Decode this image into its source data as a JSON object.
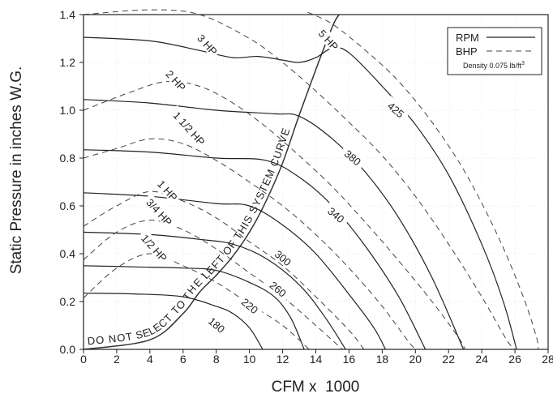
{
  "chart_data": {
    "type": "line",
    "xlabel": "CFM x  1000",
    "ylabel": "Static Pressure in inches W.G.",
    "xlim": [
      0,
      28
    ],
    "ylim": [
      0,
      1.4
    ],
    "x_ticks": [
      "0",
      "2",
      "4",
      "6",
      "8",
      "10",
      "12",
      "14",
      "16",
      "18",
      "20",
      "22",
      "24",
      "26",
      "28"
    ],
    "y_ticks": [
      "0.0",
      "0.2",
      "0.4",
      "0.6",
      "0.8",
      "1.0",
      "1.2",
      "1.4"
    ],
    "grid": true,
    "legend": {
      "position": "top-right",
      "entries": [
        {
          "label": "RPM",
          "style": "solid"
        },
        {
          "label": "BHP",
          "style": "dashed"
        }
      ],
      "note": "Density 0.075 lb/ft",
      "note_sup": "3"
    },
    "system_curve": {
      "label": "DO NOT SELECT TO THE LEFT OF THIS SYSTEM CURVE",
      "points": [
        [
          0,
          0
        ],
        [
          4,
          0.04
        ],
        [
          6,
          0.15
        ],
        [
          7,
          0.24
        ],
        [
          8,
          0.31
        ],
        [
          9,
          0.39
        ],
        [
          10,
          0.49
        ],
        [
          11,
          0.62
        ],
        [
          12,
          0.78
        ],
        [
          13,
          0.98
        ],
        [
          14,
          1.17
        ],
        [
          15,
          1.35
        ],
        [
          15.4,
          1.4
        ]
      ]
    },
    "rpm_series": [
      {
        "name": "180",
        "points": [
          [
            0,
            0.235
          ],
          [
            3,
            0.232
          ],
          [
            6,
            0.22
          ],
          [
            8,
            0.18
          ],
          [
            9,
            0.15
          ],
          [
            10,
            0.09
          ],
          [
            10.8,
            0.0
          ]
        ],
        "label_at": [
          8,
          0.1
        ]
      },
      {
        "name": "220",
        "points": [
          [
            0,
            0.35
          ],
          [
            3,
            0.345
          ],
          [
            6,
            0.34
          ],
          [
            8,
            0.33
          ],
          [
            10,
            0.28
          ],
          [
            11.5,
            0.22
          ],
          [
            12.5,
            0.13
          ],
          [
            13.3,
            0.0
          ]
        ],
        "label_at": [
          10,
          0.18
        ]
      },
      {
        "name": "260",
        "points": [
          [
            0,
            0.49
          ],
          [
            4,
            0.48
          ],
          [
            7,
            0.46
          ],
          [
            9,
            0.44
          ],
          [
            11,
            0.38
          ],
          [
            13,
            0.27
          ],
          [
            14.5,
            0.14
          ],
          [
            15.8,
            0.0
          ]
        ],
        "label_at": [
          11.7,
          0.25
        ]
      },
      {
        "name": "300",
        "points": [
          [
            0,
            0.655
          ],
          [
            4,
            0.64
          ],
          [
            8,
            0.61
          ],
          [
            10,
            0.6
          ],
          [
            12,
            0.52
          ],
          [
            14,
            0.4
          ],
          [
            16,
            0.23
          ],
          [
            17.5,
            0.09
          ],
          [
            18.2,
            0.0
          ]
        ],
        "label_at": [
          12,
          0.38
        ]
      },
      {
        "name": "340",
        "points": [
          [
            0,
            0.835
          ],
          [
            4,
            0.825
          ],
          [
            8,
            0.8
          ],
          [
            11,
            0.79
          ],
          [
            13,
            0.72
          ],
          [
            15,
            0.6
          ],
          [
            17,
            0.43
          ],
          [
            19,
            0.22
          ],
          [
            20.6,
            0.0
          ]
        ],
        "label_at": [
          15.2,
          0.56
        ]
      },
      {
        "name": "380",
        "points": [
          [
            0,
            1.045
          ],
          [
            4,
            1.03
          ],
          [
            8,
            1.0
          ],
          [
            11.5,
            0.985
          ],
          [
            13,
            0.975
          ],
          [
            15,
            0.88
          ],
          [
            17,
            0.74
          ],
          [
            19,
            0.55
          ],
          [
            21,
            0.3
          ],
          [
            22.9,
            0.0
          ]
        ],
        "label_at": [
          16.2,
          0.8
        ]
      },
      {
        "name": "425",
        "points": [
          [
            0,
            1.305
          ],
          [
            4,
            1.29
          ],
          [
            7,
            1.25
          ],
          [
            9,
            1.22
          ],
          [
            10.5,
            1.225
          ],
          [
            12,
            1.21
          ],
          [
            13,
            1.2
          ],
          [
            14,
            1.22
          ],
          [
            15,
            1.26
          ],
          [
            16,
            1.24
          ],
          [
            18,
            1.1
          ],
          [
            20,
            0.94
          ],
          [
            22,
            0.73
          ],
          [
            24,
            0.44
          ],
          [
            25.3,
            0.2
          ],
          [
            26.1,
            0.0
          ]
        ],
        "label_at": [
          18.8,
          1.0
        ]
      }
    ],
    "bhp_series": [
      {
        "name": "1/2 HP",
        "points": [
          [
            0,
            0.215
          ],
          [
            2,
            0.34
          ],
          [
            4,
            0.4
          ],
          [
            6,
            0.35
          ],
          [
            8,
            0.28
          ],
          [
            10,
            0.19
          ],
          [
            12,
            0.1
          ],
          [
            13.6,
            0.0
          ]
        ],
        "label_at": [
          4.2,
          0.42
        ]
      },
      {
        "name": "3/4 HP",
        "points": [
          [
            0,
            0.375
          ],
          [
            2,
            0.49
          ],
          [
            4,
            0.54
          ],
          [
            6,
            0.5
          ],
          [
            8,
            0.42
          ],
          [
            10,
            0.32
          ],
          [
            12,
            0.22
          ],
          [
            14,
            0.1
          ],
          [
            15.6,
            0.0
          ]
        ],
        "label_at": [
          4.5,
          0.57
        ]
      },
      {
        "name": "1 HP",
        "points": [
          [
            0,
            0.515
          ],
          [
            2,
            0.6
          ],
          [
            4,
            0.66
          ],
          [
            6,
            0.62
          ],
          [
            8,
            0.55
          ],
          [
            10,
            0.45
          ],
          [
            12,
            0.35
          ],
          [
            14,
            0.22
          ],
          [
            16,
            0.08
          ],
          [
            16.9,
            0.0
          ]
        ],
        "label_at": [
          5,
          0.66
        ]
      },
      {
        "name": "1 1/2 HP",
        "points": [
          [
            0,
            0.8
          ],
          [
            2,
            0.84
          ],
          [
            4,
            0.88
          ],
          [
            6,
            0.86
          ],
          [
            8,
            0.79
          ],
          [
            10,
            0.7
          ],
          [
            12,
            0.6
          ],
          [
            14,
            0.48
          ],
          [
            16,
            0.34
          ],
          [
            18,
            0.18
          ],
          [
            19.5,
            0.04
          ],
          [
            20,
            0.0
          ]
        ],
        "label_at": [
          6.3,
          0.92
        ]
      },
      {
        "name": "2 HP",
        "points": [
          [
            0,
            1.0
          ],
          [
            3,
            1.08
          ],
          [
            5,
            1.12
          ],
          [
            7,
            1.1
          ],
          [
            9,
            1.03
          ],
          [
            11,
            0.93
          ],
          [
            13,
            0.81
          ],
          [
            15,
            0.68
          ],
          [
            17,
            0.53
          ],
          [
            19,
            0.37
          ],
          [
            21,
            0.2
          ],
          [
            22.5,
            0.06
          ],
          [
            23,
            0.0
          ]
        ],
        "label_at": [
          5.5,
          1.12
        ]
      },
      {
        "name": "3 HP",
        "points": [
          [
            0,
            1.4
          ],
          [
            4,
            1.42
          ],
          [
            7,
            1.4
          ],
          [
            10,
            1.3
          ],
          [
            12,
            1.2
          ],
          [
            14,
            1.08
          ],
          [
            16,
            0.95
          ],
          [
            18,
            0.81
          ],
          [
            20,
            0.64
          ],
          [
            22,
            0.44
          ],
          [
            24,
            0.22
          ],
          [
            25.5,
            0.04
          ],
          [
            26,
            0.0
          ]
        ],
        "label_at": [
          7.4,
          1.27
        ]
      },
      {
        "name": "5 HP",
        "points": [
          [
            13.5,
            1.41
          ],
          [
            15,
            1.36
          ],
          [
            17,
            1.25
          ],
          [
            19,
            1.12
          ],
          [
            21,
            0.95
          ],
          [
            23,
            0.74
          ],
          [
            25,
            0.47
          ],
          [
            26.5,
            0.22
          ],
          [
            27.3,
            0.05
          ],
          [
            27.4,
            0.0
          ]
        ],
        "label_at": [
          14.7,
          1.29
        ]
      }
    ]
  }
}
